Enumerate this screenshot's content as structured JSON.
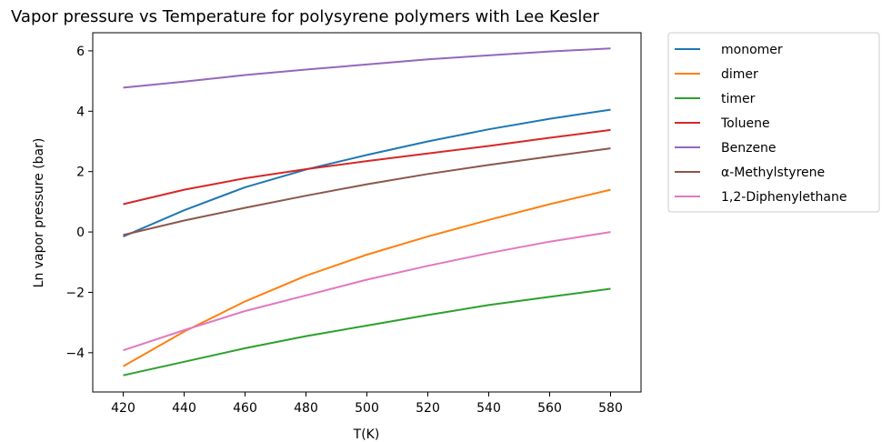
{
  "chart_data": {
    "type": "line",
    "title": "Vapor pressure vs Temperature for polysyrene polymers with Lee Kesler",
    "xlabel": "T(K)",
    "ylabel": "Ln vapor pressure (bar)",
    "xlim": [
      410,
      590
    ],
    "ylim": [
      -5.3,
      6.6
    ],
    "x_ticks": [
      420,
      440,
      460,
      480,
      500,
      520,
      540,
      560,
      580
    ],
    "y_ticks": [
      -4,
      -2,
      0,
      2,
      4,
      6
    ],
    "x_tick_labels": [
      "420",
      "440",
      "460",
      "480",
      "500",
      "520",
      "540",
      "560",
      "580"
    ],
    "y_tick_labels": [
      "−4",
      "−2",
      "0",
      "2",
      "4",
      "6"
    ],
    "grid": false,
    "legend_position": "outside-right-top",
    "x": [
      420,
      440,
      460,
      480,
      500,
      520,
      540,
      560,
      580
    ],
    "series": [
      {
        "name": "monomer",
        "color": "#1f77b4",
        "values": [
          -0.15,
          0.72,
          1.48,
          2.07,
          2.55,
          3.0,
          3.4,
          3.75,
          4.05
        ]
      },
      {
        "name": "dimer",
        "color": "#ff7f0e",
        "values": [
          -4.45,
          -3.3,
          -2.3,
          -1.45,
          -0.75,
          -0.15,
          0.4,
          0.92,
          1.4
        ]
      },
      {
        "name": "timer",
        "color": "#2ca02c",
        "values": [
          -4.75,
          -4.3,
          -3.85,
          -3.45,
          -3.1,
          -2.75,
          -2.42,
          -2.15,
          -1.88
        ]
      },
      {
        "name": "Toluene",
        "color": "#d62728",
        "values": [
          0.92,
          1.4,
          1.78,
          2.08,
          2.35,
          2.6,
          2.85,
          3.12,
          3.38
        ]
      },
      {
        "name": "Benzene",
        "color": "#9467bd",
        "values": [
          4.78,
          4.98,
          5.2,
          5.38,
          5.55,
          5.72,
          5.85,
          5.98,
          6.08
        ]
      },
      {
        "name": "α-Methylstyrene",
        "color": "#8c564b",
        "values": [
          -0.1,
          0.38,
          0.8,
          1.2,
          1.58,
          1.92,
          2.22,
          2.5,
          2.77
        ]
      },
      {
        "name": "1,2-Diphenylethane",
        "color": "#e377c2",
        "values": [
          -3.92,
          -3.25,
          -2.62,
          -2.1,
          -1.58,
          -1.12,
          -0.7,
          -0.32,
          0.0
        ]
      }
    ]
  }
}
